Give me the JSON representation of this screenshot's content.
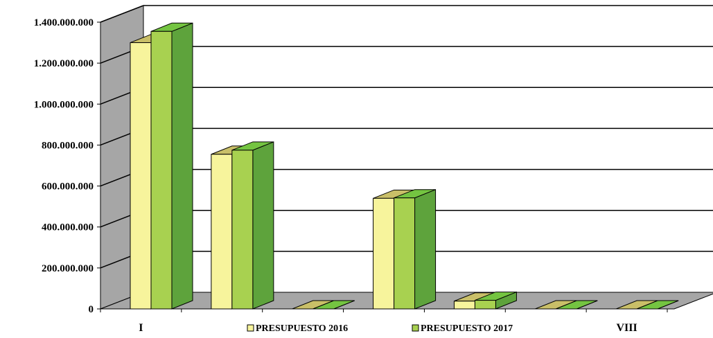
{
  "chart_data": {
    "type": "bar",
    "style": "3d-clustered-column",
    "categories": [
      "I",
      "",
      "",
      "",
      "",
      "",
      "VIII"
    ],
    "series": [
      {
        "name": "PRESUPUESTO 2016",
        "values": [
          1300000000,
          755000000,
          0,
          540000000,
          38000000,
          0,
          0
        ]
      },
      {
        "name": "PRESUPUESTO 2017",
        "values": [
          1355000000,
          775000000,
          0,
          542000000,
          42000000,
          0,
          0
        ]
      }
    ],
    "ylim": [
      0,
      1400000000
    ],
    "ytick_values": [
      0,
      200000000,
      400000000,
      600000000,
      800000000,
      1000000000,
      1200000000,
      1400000000
    ],
    "ytick_labels": [
      "0",
      "200.000.000",
      "400.000.000",
      "600.000.000",
      "800.000.000",
      "1.000.000.000",
      "1.200.000.000",
      "1.400.000.000"
    ],
    "grid": true,
    "legend_position": "bottom-center",
    "colors": {
      "series_front": [
        "#f7f49c",
        "#a8d150"
      ],
      "series_top": [
        "#c9bf68",
        "#74c441"
      ],
      "series_side": [
        "#bfb76a",
        "#5ea33c"
      ],
      "wall": "#a6a6a6",
      "floor": "#a6a6a6",
      "gridline": "#000000"
    }
  }
}
